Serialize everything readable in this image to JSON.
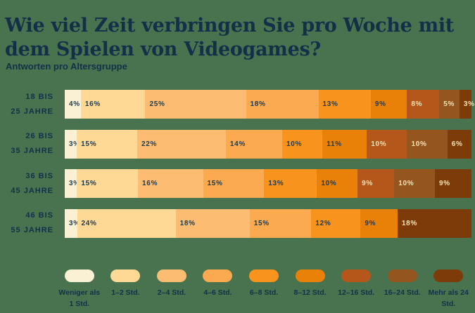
{
  "header": {
    "title": "Wie viel Zeit verbringen Sie pro Woche mit dem Spielen von Videogames?",
    "subtitle": "Antworten pro Altersgruppe"
  },
  "colors": {
    "background": "#49724f",
    "heading_text": "#143049",
    "value_text_dark": "#1c3a53",
    "value_text_light": "#f5e3b6",
    "palette": [
      "#faf0d4",
      "#fdd995",
      "#fcbd72",
      "#fbaa4f",
      "#f8941e",
      "#e98109",
      "#b5561b",
      "#95551f",
      "#7c3b08"
    ]
  },
  "chart_data": {
    "type": "bar",
    "stacked": true,
    "orientation": "horizontal",
    "unit": "%",
    "title": "Wie viel Zeit verbringen Sie pro Woche mit dem Spielen von Videogames?",
    "subtitle": "Antworten pro Altersgruppe",
    "legend": [
      "Weniger als 1 Std.",
      "1–2 Std.",
      "2–4 Std.",
      "4–6 Std.",
      "6–8 Std.",
      "8–12 Std.",
      "12–16 Std.",
      "16–24 Std.",
      "Mehr als 24 Std."
    ],
    "legend_position": "bottom",
    "light_text_from_index": 6,
    "categories": [
      {
        "label": "18 bis 25 Jahre",
        "label_lines": [
          "18 BIS",
          "25 JAHRE"
        ],
        "segments": [
          {
            "legend_index": 0,
            "value": 4,
            "text": "4%"
          },
          {
            "legend_index": 1,
            "value": 16,
            "text": "16%"
          },
          {
            "legend_index": 2,
            "value": 25,
            "text": "25%"
          },
          {
            "legend_index": 3,
            "value": 18,
            "text": "18%"
          },
          {
            "legend_index": 4,
            "value": 13,
            "text": "13%"
          },
          {
            "legend_index": 5,
            "value": 9,
            "text": "9%"
          },
          {
            "legend_index": 6,
            "value": 8,
            "text": "8%"
          },
          {
            "legend_index": 7,
            "value": 5,
            "text": "5%"
          },
          {
            "legend_index": 8,
            "value": 3,
            "text": "3%"
          }
        ]
      },
      {
        "label": "26 bis 35 Jahre",
        "label_lines": [
          "26 BIS",
          "35 JAHRE"
        ],
        "segments": [
          {
            "legend_index": 0,
            "value": 3,
            "text": "3%"
          },
          {
            "legend_index": 1,
            "value": 15,
            "text": "15%"
          },
          {
            "legend_index": 2,
            "value": 22,
            "text": "22%"
          },
          {
            "legend_index": 3,
            "value": 14,
            "text": "14%"
          },
          {
            "legend_index": 4,
            "value": 10,
            "text": "10%"
          },
          {
            "legend_index": 5,
            "value": 11,
            "text": "11%"
          },
          {
            "legend_index": 6,
            "value": 10,
            "text": "10%"
          },
          {
            "legend_index": 7,
            "value": 10,
            "text": "10%"
          },
          {
            "legend_index": 8,
            "value": 6,
            "text": "6%"
          }
        ]
      },
      {
        "label": "36 bis 45 Jahre",
        "label_lines": [
          "36 BIS",
          "45 JAHRE"
        ],
        "segments": [
          {
            "legend_index": 0,
            "value": 3,
            "text": "3%"
          },
          {
            "legend_index": 1,
            "value": 15,
            "text": "15%"
          },
          {
            "legend_index": 2,
            "value": 16,
            "text": "16%"
          },
          {
            "legend_index": 3,
            "value": 15,
            "text": "15%"
          },
          {
            "legend_index": 4,
            "value": 13,
            "text": "13%"
          },
          {
            "legend_index": 5,
            "value": 10,
            "text": "10%"
          },
          {
            "legend_index": 6,
            "value": 9,
            "text": "9%"
          },
          {
            "legend_index": 7,
            "value": 10,
            "text": "10%"
          },
          {
            "legend_index": 8,
            "value": 9,
            "text": "9%"
          }
        ]
      },
      {
        "label": "46 bis 55 Jahre",
        "label_lines": [
          "46 BIS",
          "55 JAHRE"
        ],
        "segments": [
          {
            "legend_index": 0,
            "value": 3,
            "text": "3%"
          },
          {
            "legend_index": 1,
            "value": 24,
            "text": "24%"
          },
          {
            "legend_index": 2,
            "value": 18,
            "text": "18%"
          },
          {
            "legend_index": 3,
            "value": 15,
            "text": "15%"
          },
          {
            "legend_index": 4,
            "value": 12,
            "text": "12%"
          },
          {
            "legend_index": 5,
            "value": 9,
            "text": "9%"
          },
          {
            "legend_index": 8,
            "value": 18,
            "text": "18%"
          }
        ]
      }
    ]
  }
}
